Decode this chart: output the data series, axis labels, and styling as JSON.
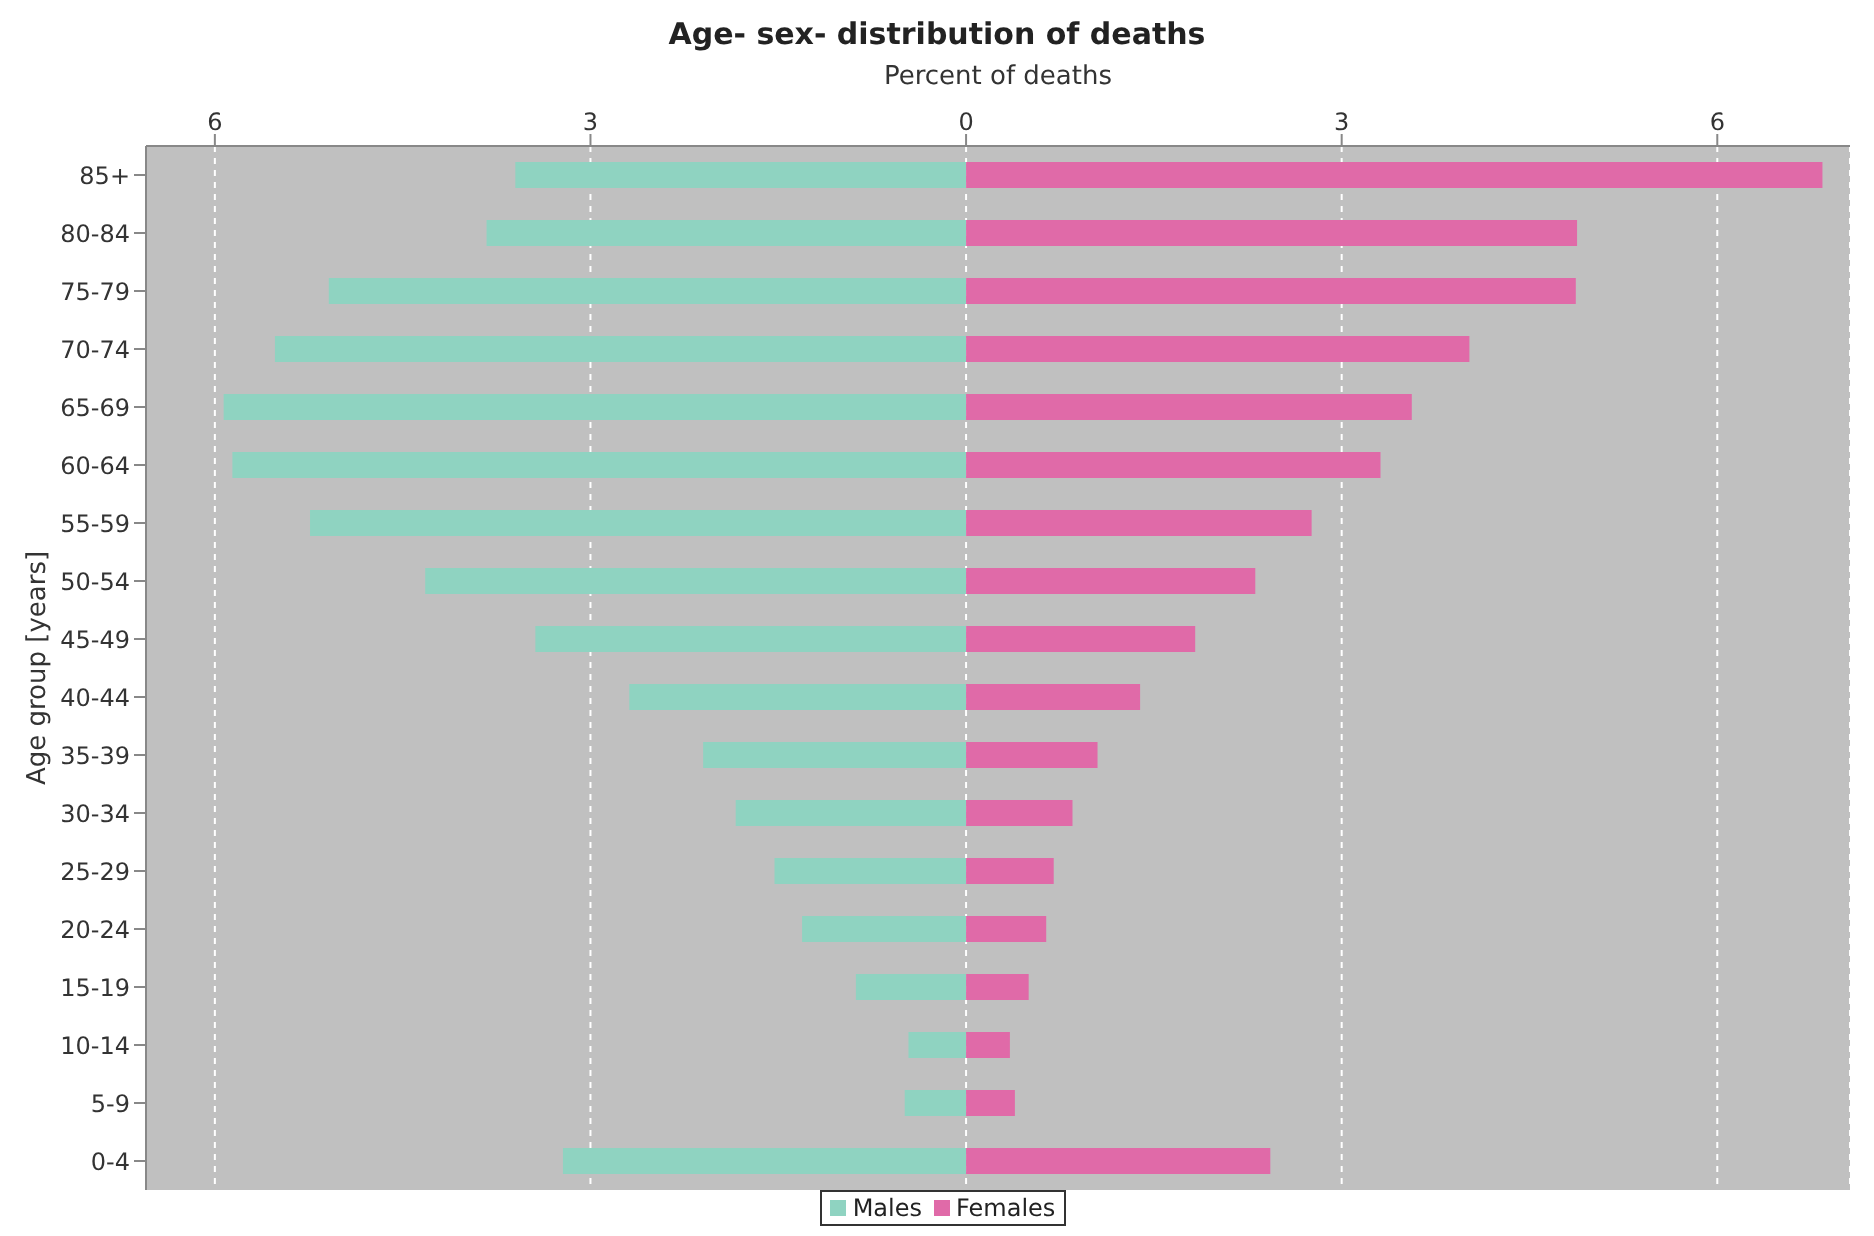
{
  "chart_data": {
    "type": "bar",
    "orientation": "horizontal",
    "title": "Age- sex- distribution of deaths",
    "xlabel": "Percent of deaths",
    "ylabel": "Age group [years]",
    "categories": [
      "85+",
      "80-84",
      "75-79",
      "70-74",
      "65-69",
      "60-64",
      "55-59",
      "50-54",
      "45-49",
      "40-44",
      "35-39",
      "30-34",
      "25-29",
      "20-24",
      "15-19",
      "10-14",
      "5-9",
      "0-4"
    ],
    "series": [
      {
        "name": "Males",
        "color": "#8fd3c1",
        "values": [
          -3.6,
          -3.83,
          -5.09,
          -5.52,
          -5.93,
          -5.86,
          -5.24,
          -4.32,
          -3.44,
          -2.69,
          -2.1,
          -1.84,
          -1.53,
          -1.31,
          -0.88,
          -0.46,
          -0.49,
          -3.22
        ]
      },
      {
        "name": "Females",
        "color": "#e06aa8",
        "values": [
          6.84,
          4.88,
          4.87,
          4.02,
          3.56,
          3.31,
          2.76,
          2.31,
          1.83,
          1.39,
          1.05,
          0.85,
          0.7,
          0.64,
          0.5,
          0.35,
          0.39,
          2.43
        ]
      }
    ],
    "xlim": [
      -6.55,
      7.06
    ],
    "xticks": [
      {
        "value": -6,
        "label": "6"
      },
      {
        "value": -3,
        "label": "3"
      },
      0,
      3,
      6
    ],
    "grid": "x",
    "legend": "bottom",
    "stacked": true
  }
}
